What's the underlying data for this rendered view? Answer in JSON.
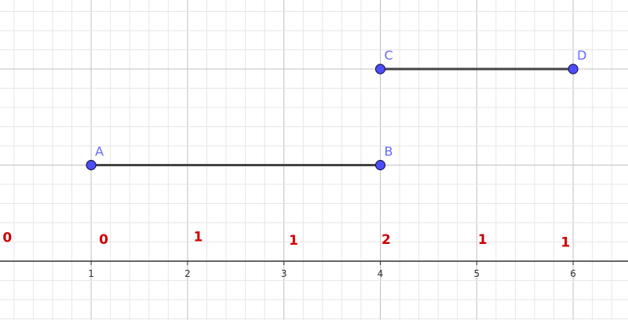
{
  "view": {
    "x_range": [
      -0.05,
      6.56
    ],
    "y_range": [
      -0.61,
      2.72
    ],
    "major_grid": 1,
    "minor_grid": 0.2,
    "axis_color": "#333333",
    "major_grid_color": "#c0c0c0",
    "minor_grid_color": "#e6e6e6"
  },
  "x_ticks": [
    "1",
    "2",
    "3",
    "4",
    "5",
    "6"
  ],
  "points": [
    {
      "label": "A",
      "x": 1,
      "y": 1
    },
    {
      "label": "B",
      "x": 4,
      "y": 1
    },
    {
      "label": "C",
      "x": 4,
      "y": 2
    },
    {
      "label": "D",
      "x": 6,
      "y": 2
    }
  ],
  "segments": [
    [
      "A",
      "B"
    ],
    [
      "C",
      "D"
    ]
  ],
  "point_color": "#4d4dff",
  "label_color": "#6666ff",
  "segment_color": "#444444",
  "red_labels": [
    {
      "text": "0"
    },
    {
      "text": "0",
      "x": 1.13,
      "y": 0.18
    },
    {
      "text": "1",
      "x": 2.11,
      "y": 0.21
    },
    {
      "text": "1",
      "x": 3.1,
      "y": 0.17
    },
    {
      "text": "2",
      "x": 4.06,
      "y": 0.18
    },
    {
      "text": "1",
      "x": 5.06,
      "y": 0.18
    },
    {
      "text": "1",
      "x": 5.92,
      "y": 0.15
    }
  ],
  "red_color": "#cc0000"
}
